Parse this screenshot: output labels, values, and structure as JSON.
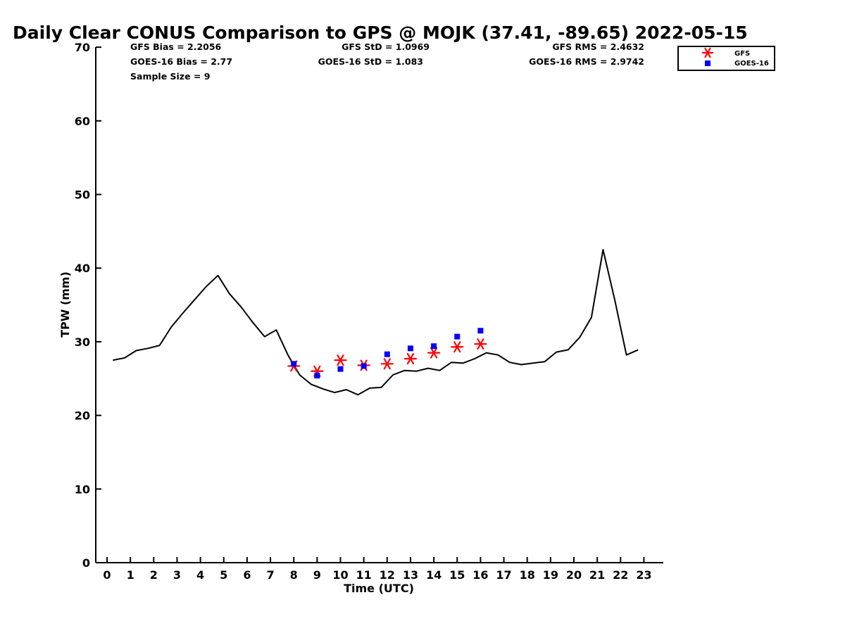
{
  "chart_data": {
    "type": "line",
    "title": "Daily Clear CONUS Comparison to GPS @ MOJK (37.41, -89.65) 2022-05-15",
    "xlabel": "Time (UTC)",
    "ylabel": "TPW (mm)",
    "xlim": [
      -0.5,
      23.8
    ],
    "ylim": [
      0,
      70
    ],
    "xticks": [
      "0",
      "1",
      "2",
      "3",
      "4",
      "5",
      "6",
      "7",
      "8",
      "9",
      "10",
      "11",
      "12",
      "13",
      "14",
      "15",
      "16",
      "17",
      "18",
      "19",
      "20",
      "21",
      "22",
      "23"
    ],
    "yticks": [
      "0",
      "10",
      "20",
      "30",
      "40",
      "50",
      "60",
      "70"
    ],
    "grid": false,
    "legend_position": "top-right",
    "stats": {
      "gfs_bias": "GFS Bias = 2.2056",
      "goes_bias": "GOES-16 Bias = 2.77",
      "sample_size": "Sample Size = 9",
      "gfs_std": "GFS StD = 1.0969",
      "goes_std": "GOES-16 StD = 1.083",
      "gfs_rms": "GFS RMS = 2.4632",
      "goes_rms": "GOES-16 RMS = 2.9742"
    },
    "series": [
      {
        "name": "",
        "style": "line",
        "color": "#000000",
        "x": [
          0.25,
          0.75,
          1.25,
          1.75,
          2.25,
          2.75,
          3.25,
          3.75,
          4.25,
          4.75,
          5.25,
          5.75,
          6.25,
          6.75,
          7.25,
          7.75,
          8.25,
          8.75,
          9.25,
          9.75,
          10.25,
          10.75,
          11.25,
          11.75,
          12.25,
          12.75,
          13.25,
          13.75,
          14.25,
          14.75,
          15.25,
          15.75,
          16.25,
          16.75,
          17.25,
          17.75,
          18.25,
          18.75,
          19.25,
          19.75,
          20.25,
          20.75,
          21.25,
          21.75,
          22.25,
          22.75
        ],
        "y": [
          27.5,
          27.8,
          28.8,
          29.1,
          29.5,
          32.0,
          33.9,
          35.7,
          37.5,
          39.0,
          36.5,
          34.7,
          32.6,
          30.7,
          31.6,
          28.2,
          25.5,
          24.2,
          23.6,
          23.1,
          23.5,
          22.8,
          23.7,
          23.8,
          25.5,
          26.1,
          26.0,
          26.4,
          26.1,
          27.2,
          27.1,
          27.7,
          28.5,
          28.2,
          27.2,
          26.9,
          27.1,
          27.3,
          28.6,
          28.9,
          30.6,
          33.3,
          42.5,
          35.7,
          28.2,
          28.9
        ]
      },
      {
        "name": "GFS",
        "style": "asterisk",
        "color": "#ff0000",
        "x": [
          8,
          9,
          10,
          11,
          12,
          13,
          14,
          15,
          16
        ],
        "y": [
          26.7,
          26.0,
          27.5,
          26.8,
          27.0,
          27.7,
          28.5,
          29.3,
          29.7
        ]
      },
      {
        "name": "GOES-16",
        "style": "square",
        "color": "#0000ff",
        "x": [
          8,
          9,
          10,
          11,
          12,
          13,
          14,
          15,
          16
        ],
        "y": [
          27.0,
          25.4,
          26.3,
          26.7,
          28.3,
          29.1,
          29.4,
          30.7,
          31.5
        ]
      }
    ]
  }
}
